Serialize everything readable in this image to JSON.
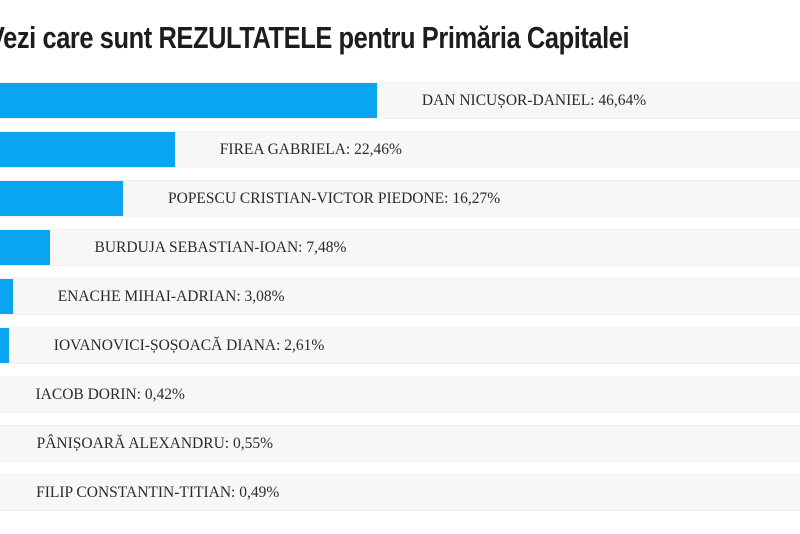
{
  "header": {
    "title": "Vezi care sunt REZULTATELE pentru Primăria Capitalei"
  },
  "chart_data": {
    "type": "bar",
    "orientation": "horizontal",
    "title": "Vezi care sunt REZULTATELE pentru Primăria Capitalei",
    "xlabel": "",
    "ylabel": "",
    "xlim": [
      0,
      100
    ],
    "grid": false,
    "legend": "none",
    "bar_color": "#0aa5f0",
    "row_background": "#f7f7f7",
    "value_suffix": "%",
    "decimal_separator": ",",
    "categories": [
      "DAN NICUȘOR-DANIEL",
      "FIREA GABRIELA",
      "POPESCU CRISTIAN-VICTOR PIEDONE",
      "BURDUJA SEBASTIAN-IOAN",
      "ENACHE MIHAI-ADRIAN",
      "IOVANOVICI-ȘOȘOACĂ DIANA",
      "IACOB DORIN",
      "PÂNIȘOARĂ ALEXANDRU",
      "FILIP CONSTANTIN-TITIAN"
    ],
    "values": [
      46.64,
      22.46,
      16.27,
      7.48,
      3.08,
      2.61,
      0.42,
      0.55,
      0.49
    ],
    "bars": [
      {
        "name": "DAN NICUȘOR-DANIEL",
        "value": 46.64,
        "label": "DAN NICUȘOR-DANIEL: 46,64%"
      },
      {
        "name": "FIREA GABRIELA",
        "value": 22.46,
        "label": "FIREA GABRIELA: 22,46%"
      },
      {
        "name": "POPESCU CRISTIAN-VICTOR PIEDONE",
        "value": 16.27,
        "label": "POPESCU CRISTIAN-VICTOR PIEDONE: 16,27%"
      },
      {
        "name": "BURDUJA SEBASTIAN-IOAN",
        "value": 7.48,
        "label": "BURDUJA SEBASTIAN-IOAN: 7,48%"
      },
      {
        "name": "ENACHE MIHAI-ADRIAN",
        "value": 3.08,
        "label": "ENACHE MIHAI-ADRIAN: 3,08%"
      },
      {
        "name": "IOVANOVICI-ȘOȘOACĂ DIANA",
        "value": 2.61,
        "label": "IOVANOVICI-ȘOȘOACĂ DIANA: 2,61%"
      },
      {
        "name": "IACOB DORIN",
        "value": 0.42,
        "label": "IACOB DORIN: 0,42%"
      },
      {
        "name": "PÂNIȘOARĂ ALEXANDRU",
        "value": 0.55,
        "label": "PÂNIȘOARĂ ALEXANDRU: 0,55%"
      },
      {
        "name": "FILIP CONSTANTIN-TITIAN",
        "value": 0.49,
        "label": "FILIP CONSTANTIN-TITIAN: 0,49%"
      }
    ]
  }
}
